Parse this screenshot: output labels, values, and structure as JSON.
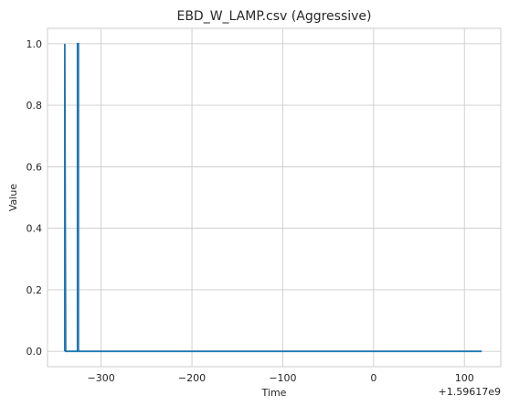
{
  "chart_data": {
    "type": "line",
    "title": "EBD_W_LAMP.csv (Aggressive)",
    "xlabel": "Time",
    "ylabel": "Value",
    "x_offset_label": "+1.59617e9",
    "xlim": [
      -359,
      140
    ],
    "ylim": [
      -0.05,
      1.05
    ],
    "xticks": [
      {
        "value": -300,
        "label": "−300"
      },
      {
        "value": -200,
        "label": "−200"
      },
      {
        "value": -100,
        "label": "−100"
      },
      {
        "value": 0,
        "label": "0"
      },
      {
        "value": 100,
        "label": "100"
      }
    ],
    "yticks": [
      {
        "value": 0.0,
        "label": "0.0"
      },
      {
        "value": 0.2,
        "label": "0.2"
      },
      {
        "value": 0.4,
        "label": "0.4"
      },
      {
        "value": 0.6,
        "label": "0.6"
      },
      {
        "value": 0.8,
        "label": "0.8"
      },
      {
        "value": 1.0,
        "label": "1.0"
      }
    ],
    "grid": true,
    "series": [
      {
        "color": "#1f77b4",
        "x": [
          -340,
          -340,
          -339,
          -326,
          -326,
          -325,
          -325,
          119
        ],
        "y": [
          0,
          1,
          0,
          0,
          1,
          1,
          0,
          0
        ]
      }
    ]
  }
}
